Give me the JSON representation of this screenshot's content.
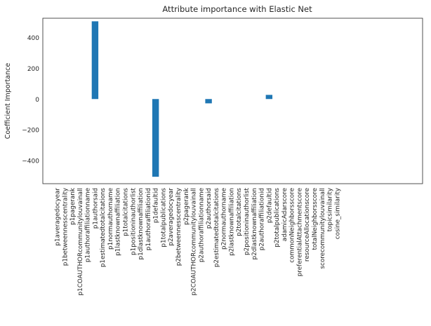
{
  "chart_data": {
    "type": "bar",
    "title": "Attribute importance with Elastic Net",
    "xlabel": "",
    "ylabel": "Coefficient Importance",
    "ylim": [
      -550,
      525
    ],
    "yticks": [
      400,
      200,
      0,
      -200,
      -400
    ],
    "ytick_labels": [
      "400",
      "200",
      "0",
      "−200",
      "−400"
    ],
    "grid": false,
    "color": "#1f77b4",
    "categories": [
      "p1averagedocyear",
      "p1betweennesscentrality",
      "p1pagerank",
      "p1COAUTHORcommunitylouvainall",
      "p1authoraffiliationname",
      "p1authorsaid",
      "p1estimatedtotalcitations",
      "p1normauthorname",
      "p1lastknownaffiliation",
      "p1totalcitations",
      "p1positioninauthorlist",
      "p1dlastknownaffiliation",
      "p1authoraffiliationid",
      "p1defaultid",
      "p1totalpublications",
      "p2averagedocyear",
      "p2betweennesscentrality",
      "p2pagerank",
      "p2COAUTHORcommunitylouvainall",
      "p2authoraffiliationname",
      "p2authorsaid",
      "p2estimatedtotalcitations",
      "p2normauthorname",
      "p2lastknownaffiliation",
      "p2totalcitations",
      "p2positioninauthorlist",
      "p2dlastknownaffiliation",
      "p2authoraffiliationid",
      "p2defaultid",
      "p2totalpublications",
      "adamicAdarscore",
      "commonNeighborsscore",
      "preferentialAttachmentscore",
      "resourceAllocationscore",
      "totalNeighborsscore",
      "scorecommunitylouvainall",
      "topicsimilarity",
      "cosine_similarity"
    ],
    "values": [
      0,
      0,
      0,
      0,
      0,
      505,
      0,
      0,
      0,
      0,
      0,
      0,
      0,
      -505,
      0,
      0,
      0,
      0,
      0,
      0,
      -28,
      0,
      0,
      0,
      0,
      0,
      0,
      0,
      27,
      0,
      0,
      0,
      0,
      0,
      0,
      0,
      0,
      0
    ]
  }
}
